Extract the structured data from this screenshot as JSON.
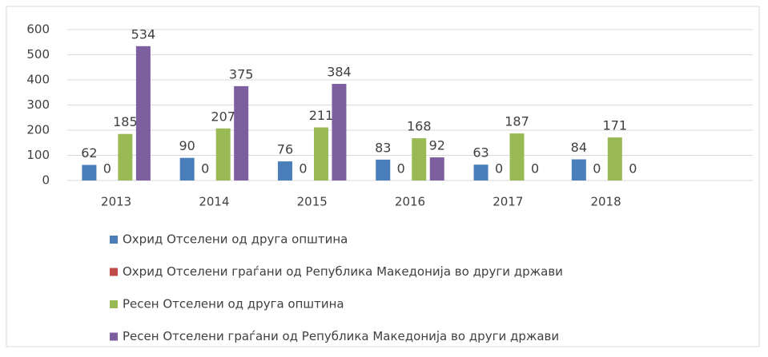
{
  "chart_data": {
    "type": "bar",
    "categories": [
      "2013",
      "2014",
      "2015",
      "2016",
      "2017",
      "2018",
      null
    ],
    "series": [
      {
        "name": "Охрид Отселени од друга општина",
        "color": "#4a7ebb",
        "values": [
          62,
          90,
          76,
          83,
          63,
          84,
          null
        ]
      },
      {
        "name": "Охрид Отселени граѓани од Република Македонија во други држави",
        "color": "#be4b48",
        "values": [
          0,
          0,
          0,
          0,
          0,
          0,
          null
        ]
      },
      {
        "name": "Ресен Отселени од друга општина",
        "color": "#98b954",
        "values": [
          185,
          207,
          211,
          168,
          187,
          171,
          null
        ]
      },
      {
        "name": "Ресен Отселени граѓани од Република Македонија во други држави",
        "color": "#7d5fa0",
        "values": [
          534,
          375,
          384,
          92,
          0,
          0,
          null
        ]
      }
    ],
    "ylim": [
      0,
      600
    ],
    "yticks": [
      0,
      100,
      200,
      300,
      400,
      500,
      600
    ],
    "grid": true,
    "legend": "bottom"
  }
}
